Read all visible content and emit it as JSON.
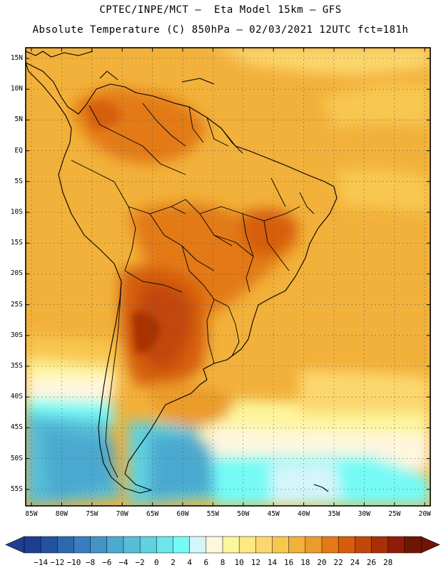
{
  "header": {
    "line1": "CPTEC/INPE/MCT –  Eta Model 15km – GFS",
    "line2": "Absolute Temperature (C) 850hPa – 02/03/2021 12UTC fct=181h"
  },
  "map": {
    "region": "South America",
    "lat_labels": [
      "15N",
      "10N",
      "5N",
      "EQ",
      "5S",
      "10S",
      "15S",
      "20S",
      "25S",
      "30S",
      "35S",
      "40S",
      "45S",
      "50S",
      "55S"
    ],
    "lon_labels": [
      "85W",
      "80W",
      "75W",
      "70W",
      "65W",
      "60W",
      "55W",
      "50W",
      "45W",
      "40W",
      "35W",
      "30W",
      "25W",
      "20W"
    ],
    "gridlines": "dotted"
  },
  "colorbar": {
    "labels": [
      "−14",
      "−12",
      "−10",
      "−8",
      "−6",
      "−4",
      "−2",
      "0",
      "2",
      "4",
      "6",
      "8",
      "10",
      "12",
      "14",
      "16",
      "18",
      "20",
      "22",
      "24",
      "26",
      "28"
    ],
    "colors": [
      "#1e3f8f",
      "#25529e",
      "#2f69ad",
      "#3a7fbd",
      "#4394c5",
      "#4ca9cf",
      "#56bed8",
      "#5fd1e0",
      "#6be6ea",
      "#76faf6",
      "#d4f5f9",
      "#fff6de",
      "#fdf59b",
      "#fde884",
      "#fcd76e",
      "#f8c74f",
      "#f2b13a",
      "#eb9c2c",
      "#e37a16",
      "#d65e0a",
      "#c2470a",
      "#a83006",
      "#8d1e05",
      "#6f1504"
    ],
    "left_arrow_color": "#1e3f8f",
    "right_arrow_color": "#6f1504"
  }
}
